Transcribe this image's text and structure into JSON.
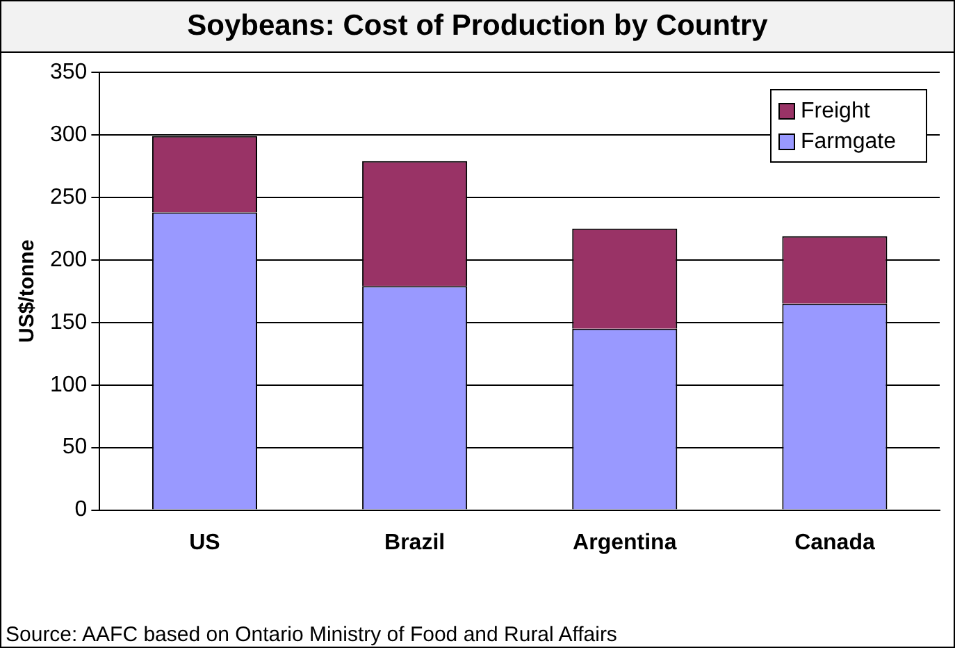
{
  "chart_data": {
    "type": "bar",
    "title": "Soybeans: Cost of Production by Country",
    "ylabel": "US$/tonne",
    "categories": [
      "US",
      "Brazil",
      "Argentina",
      "Canada"
    ],
    "stacked": true,
    "series": [
      {
        "name": "Farmgate",
        "color": "#9999ff",
        "values": [
          238,
          179,
          145,
          165
        ]
      },
      {
        "name": "Freight",
        "color": "#993366",
        "values": [
          61,
          100,
          80,
          54
        ]
      }
    ],
    "ylim": [
      0,
      350
    ],
    "yticks": [
      0,
      50,
      100,
      150,
      200,
      250,
      300,
      350
    ],
    "grid": "y",
    "legend": "top right",
    "annotations": [
      "Source: AAFC based on Ontario Ministry of Food and Rural Affairs"
    ]
  }
}
